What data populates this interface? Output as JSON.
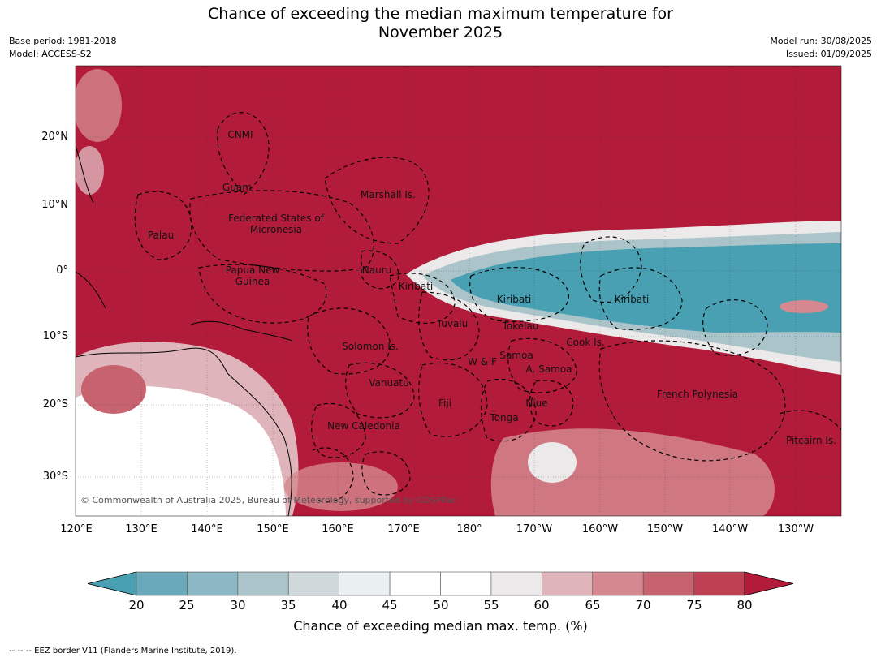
{
  "header": {
    "title_line1": "Chance of exceeding the median maximum temperature for",
    "title_line2": "November 2025",
    "base_period": "Base period: 1981-2018",
    "model": "Model: ACCESS-S2",
    "model_run": "Model run: 30/08/2025",
    "issued": "Issued: 01/09/2025"
  },
  "map": {
    "lat_labels": [
      "20°N",
      "10°N",
      "0°",
      "10°S",
      "20°S",
      "30°S"
    ],
    "lon_labels": [
      "120°E",
      "130°E",
      "140°E",
      "150°E",
      "160°E",
      "170°E",
      "180°",
      "170°W",
      "160°W",
      "150°W",
      "140°W",
      "130°W"
    ],
    "places": [
      {
        "name": "CNMI"
      },
      {
        "name": "Guam"
      },
      {
        "name": "Marshall Is."
      },
      {
        "name": "Federated States of Micronesia"
      },
      {
        "name": "Palau"
      },
      {
        "name": "Papua New Guinea"
      },
      {
        "name": "Nauru"
      },
      {
        "name": "Kiribati"
      },
      {
        "name": "Kiribati"
      },
      {
        "name": "Kiribati"
      },
      {
        "name": "Tuvalu"
      },
      {
        "name": "Tokelau"
      },
      {
        "name": "Cook Is."
      },
      {
        "name": "Solomon Is."
      },
      {
        "name": "Samoa"
      },
      {
        "name": "W & F"
      },
      {
        "name": "A. Samoa"
      },
      {
        "name": "Vanuatu"
      },
      {
        "name": "Fiji"
      },
      {
        "name": "Niue"
      },
      {
        "name": "French Polynesia"
      },
      {
        "name": "Tonga"
      },
      {
        "name": "New Caledonia"
      },
      {
        "name": "Pitcairn Is."
      }
    ],
    "copyright": "© Commonwealth of Australia 2025, Bureau of Meteorology, supported by COSPPac",
    "colors": {
      "warm_dominant": "#b31b3a",
      "cool_dominant": "#4aa0b3",
      "land_outline": "#000000",
      "eez_border": "#000000"
    }
  },
  "colorbar": {
    "ticks": [
      "20",
      "25",
      "30",
      "35",
      "40",
      "45",
      "50",
      "55",
      "60",
      "65",
      "70",
      "75",
      "80"
    ],
    "colors": [
      "#4aa0b3",
      "#6aa9b9",
      "#8bb8c4",
      "#aac4ca",
      "#cfd8db",
      "#eaf0f0",
      "#ffffff",
      "#ffffff",
      "#ebe9ea",
      "#dfb5bb",
      "#d5888f",
      "#c7636f",
      "#bd4152",
      "#b31b3a"
    ],
    "label": "Chance of exceeding median max. temp. (%)"
  },
  "footnote": "--  --  -- EEZ border V11 (Flanders Marine Institute, 2019)."
}
